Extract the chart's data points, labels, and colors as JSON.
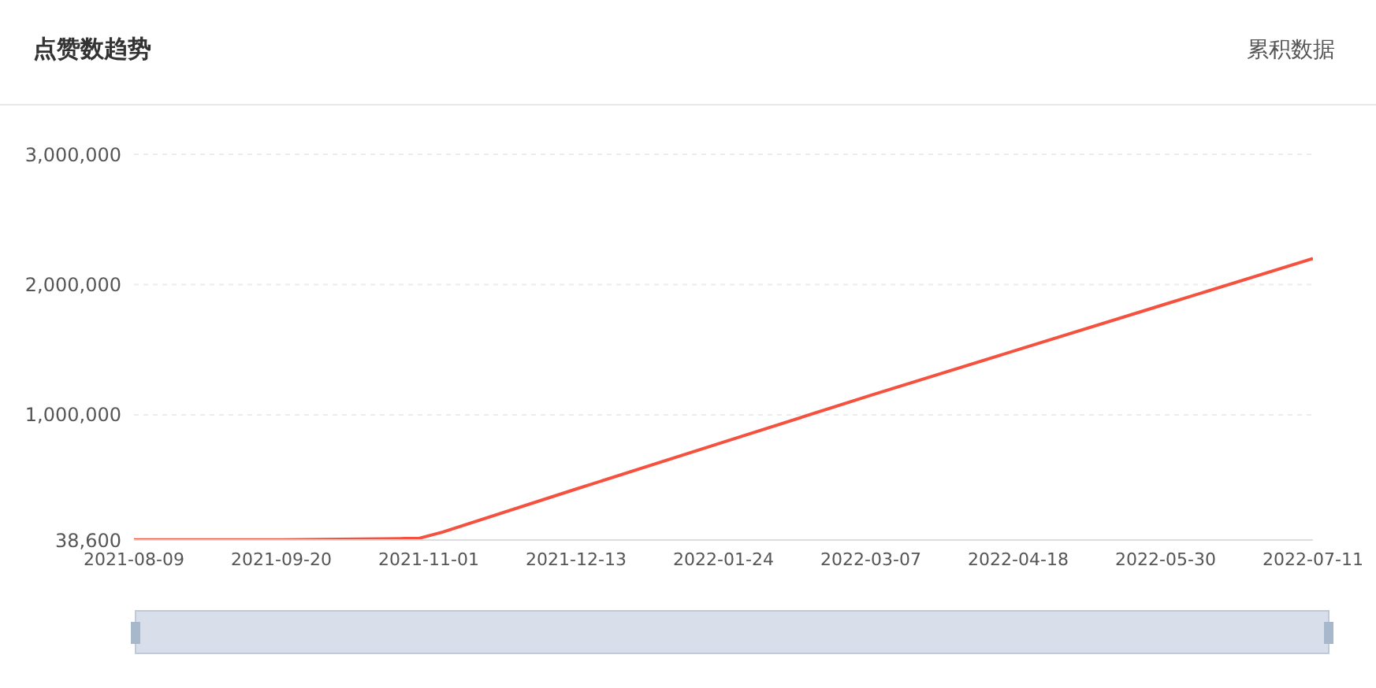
{
  "chart_data": {
    "type": "line",
    "title": "点赞数趋势",
    "annotations": [
      "累积数据"
    ],
    "x": [
      "2021-08-09",
      "2021-09-20",
      "2021-10-25",
      "2021-10-29",
      "2021-11-05",
      "2021-12-13",
      "2022-01-24",
      "2022-03-07",
      "2022-04-18",
      "2022-05-30",
      "2022-07-11"
    ],
    "series": [
      {
        "color": "#f5513f",
        "values": [
          40000,
          40000,
          50000,
          50000,
          100000,
          430000,
          790000,
          1150000,
          1500000,
          1850000,
          2200000
        ]
      }
    ],
    "xlim": [
      "2021-08-09",
      "2022-07-11"
    ],
    "xticks": [
      "2021-08-09",
      "2021-09-20",
      "2021-11-01",
      "2021-12-13",
      "2022-01-24",
      "2022-03-07",
      "2022-04-18",
      "2022-05-30",
      "2022-07-11"
    ],
    "ylim": [
      38600,
      3000000
    ],
    "yticks": [
      {
        "value": 38600,
        "label": "38,600"
      },
      {
        "value": 1000000,
        "label": "1,000,000"
      },
      {
        "value": 2000000,
        "label": "2,000,000"
      },
      {
        "value": 3000000,
        "label": "3,000,000"
      }
    ],
    "grid": "y",
    "legend": false,
    "marker": "none",
    "line_style": "solid"
  }
}
